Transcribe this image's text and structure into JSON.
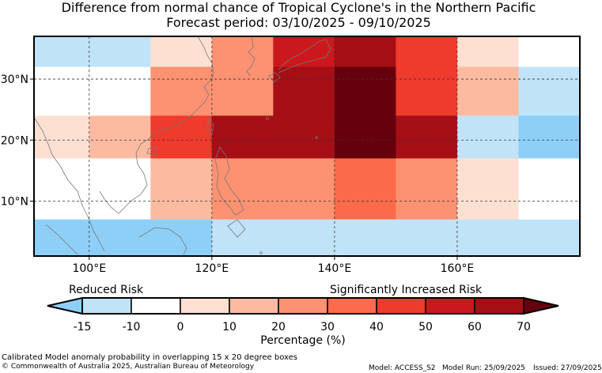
{
  "title": {
    "line1": "Difference from normal chance of Tropical Cyclone's in the Northern Pacific",
    "line2": "Forecast period: 03/10/2025 - 09/10/2025"
  },
  "map": {
    "lon_range": [
      91,
      180
    ],
    "lat_range": [
      1,
      37
    ],
    "lon_ticks": [
      {
        "value": 100,
        "label": "100°E"
      },
      {
        "value": 120,
        "label": "120°E"
      },
      {
        "value": 140,
        "label": "140°E"
      },
      {
        "value": 160,
        "label": "160°E"
      }
    ],
    "lat_ticks": [
      {
        "value": 10,
        "label": "10°N"
      },
      {
        "value": 20,
        "label": "20°N"
      },
      {
        "value": 30,
        "label": "30°N"
      }
    ],
    "cells": [
      {
        "lon0": 91,
        "lon1": 110,
        "lat0": 32,
        "lat1": 37,
        "bin": 1
      },
      {
        "lon0": 110,
        "lon1": 120,
        "lat0": 32,
        "lat1": 37,
        "bin": 3
      },
      {
        "lon0": 120,
        "lon1": 130,
        "lat0": 32,
        "lat1": 37,
        "bin": 5
      },
      {
        "lon0": 130,
        "lon1": 140,
        "lat0": 32,
        "lat1": 37,
        "bin": 8
      },
      {
        "lon0": 140,
        "lon1": 150,
        "lat0": 32,
        "lat1": 37,
        "bin": 9
      },
      {
        "lon0": 150,
        "lon1": 160,
        "lat0": 32,
        "lat1": 37,
        "bin": 7
      },
      {
        "lon0": 160,
        "lon1": 170,
        "lat0": 32,
        "lat1": 37,
        "bin": 3
      },
      {
        "lon0": 170,
        "lon1": 180,
        "lat0": 32,
        "lat1": 37,
        "bin": 2
      },
      {
        "lon0": 91,
        "lon1": 110,
        "lat0": 24,
        "lat1": 32,
        "bin": 2
      },
      {
        "lon0": 110,
        "lon1": 130,
        "lat0": 24,
        "lat1": 32,
        "bin": 5
      },
      {
        "lon0": 130,
        "lon1": 140,
        "lat0": 24,
        "lat1": 32,
        "bin": 9
      },
      {
        "lon0": 140,
        "lon1": 150,
        "lat0": 24,
        "lat1": 32,
        "bin": 10
      },
      {
        "lon0": 150,
        "lon1": 160,
        "lat0": 24,
        "lat1": 32,
        "bin": 7
      },
      {
        "lon0": 160,
        "lon1": 170,
        "lat0": 24,
        "lat1": 32,
        "bin": 4
      },
      {
        "lon0": 170,
        "lon1": 180,
        "lat0": 24,
        "lat1": 32,
        "bin": 1
      },
      {
        "lon0": 91,
        "lon1": 100,
        "lat0": 17,
        "lat1": 24,
        "bin": 3
      },
      {
        "lon0": 100,
        "lon1": 110,
        "lat0": 17,
        "lat1": 24,
        "bin": 4
      },
      {
        "lon0": 110,
        "lon1": 120,
        "lat0": 17,
        "lat1": 24,
        "bin": 7
      },
      {
        "lon0": 120,
        "lon1": 140,
        "lat0": 17,
        "lat1": 24,
        "bin": 9
      },
      {
        "lon0": 140,
        "lon1": 150,
        "lat0": 17,
        "lat1": 24,
        "bin": 10
      },
      {
        "lon0": 150,
        "lon1": 160,
        "lat0": 17,
        "lat1": 24,
        "bin": 9
      },
      {
        "lon0": 160,
        "lon1": 170,
        "lat0": 17,
        "lat1": 24,
        "bin": 1
      },
      {
        "lon0": 170,
        "lon1": 180,
        "lat0": 17,
        "lat1": 24,
        "bin": 0
      },
      {
        "lon0": 91,
        "lon1": 110,
        "lat0": 7,
        "lat1": 17,
        "bin": 2
      },
      {
        "lon0": 110,
        "lon1": 120,
        "lat0": 7,
        "lat1": 17,
        "bin": 4
      },
      {
        "lon0": 120,
        "lon1": 140,
        "lat0": 7,
        "lat1": 17,
        "bin": 5
      },
      {
        "lon0": 140,
        "lon1": 150,
        "lat0": 7,
        "lat1": 17,
        "bin": 6
      },
      {
        "lon0": 150,
        "lon1": 160,
        "lat0": 7,
        "lat1": 17,
        "bin": 5
      },
      {
        "lon0": 160,
        "lon1": 170,
        "lat0": 7,
        "lat1": 17,
        "bin": 3
      },
      {
        "lon0": 170,
        "lon1": 180,
        "lat0": 7,
        "lat1": 17,
        "bin": 2
      },
      {
        "lon0": 91,
        "lon1": 120,
        "lat0": 1,
        "lat1": 7,
        "bin": 0
      },
      {
        "lon0": 120,
        "lon1": 180,
        "lat0": 1,
        "lat1": 7,
        "bin": 1
      }
    ]
  },
  "colorbar": {
    "bin_colors": [
      "#8ecff7",
      "#c0e3f8",
      "#ffffff",
      "#fee0d2",
      "#fcbba1",
      "#fc9272",
      "#fb6a4a",
      "#ef3b2c",
      "#cb181d",
      "#a50f15",
      "#67000d"
    ],
    "bounds": [
      "-15",
      "-10",
      "0",
      "10",
      "20",
      "30",
      "40",
      "50",
      "60",
      "70"
    ],
    "label": "Percentage (%)",
    "left_text": "Reduced Risk",
    "right_text": "Significantly Increased Risk"
  },
  "footer": {
    "line1": "Calibrated Model anomaly probability in overlapping 15 x 20 degree boxes",
    "line2": "© Commonwealth of Australia 2025, Australian Bureau of Meteorology",
    "model": "Model: ACCESS_S2",
    "model_run": "Model Run: 25/09/2025",
    "issued": "Issued: 27/09/2025"
  }
}
